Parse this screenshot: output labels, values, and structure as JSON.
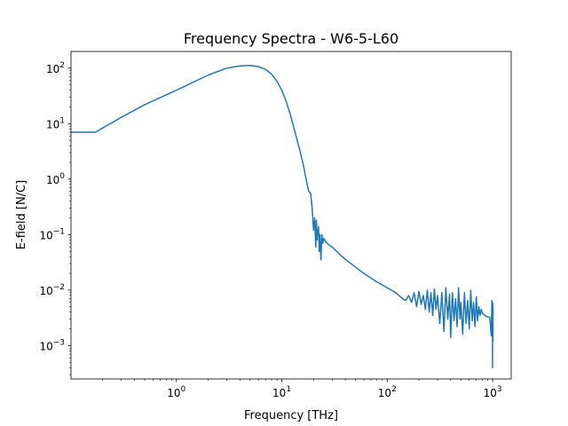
{
  "chart_data": {
    "type": "line",
    "title": "Frequency Spectra - W6-5-L60",
    "xlabel": "Frequency [THz]",
    "ylabel": "E-field [N/C]",
    "xscale": "log",
    "yscale": "log",
    "xlim": [
      0.1,
      1500
    ],
    "ylim": [
      0.00025,
      200
    ],
    "grid": false,
    "line_color": "#1f77b4",
    "x_ticks": [
      {
        "value": 1,
        "base": "10",
        "exp": "0"
      },
      {
        "value": 10,
        "base": "10",
        "exp": "1"
      },
      {
        "value": 100,
        "base": "10",
        "exp": "2"
      },
      {
        "value": 1000,
        "base": "10",
        "exp": "3"
      }
    ],
    "y_ticks": [
      {
        "value": 0.001,
        "base": "10",
        "exp": "−3"
      },
      {
        "value": 0.01,
        "base": "10",
        "exp": "−2"
      },
      {
        "value": 0.1,
        "base": "10",
        "exp": "−1"
      },
      {
        "value": 1,
        "base": "10",
        "exp": "0"
      },
      {
        "value": 10,
        "base": "10",
        "exp": "1"
      },
      {
        "value": 100,
        "base": "10",
        "exp": "2"
      }
    ],
    "series": [
      {
        "x": [
          0.1,
          0.17,
          0.3,
          0.5,
          1,
          2,
          3,
          4,
          5,
          6,
          7,
          8,
          9,
          10,
          11,
          12,
          13,
          14,
          15,
          16,
          17,
          18,
          18.8,
          19.4,
          20,
          20.5,
          21,
          21.3,
          21.6,
          21.8,
          22,
          22.3,
          22.6,
          23,
          23.5,
          24,
          24.5,
          25,
          25.5,
          26,
          27,
          28,
          30,
          35,
          40,
          50,
          60,
          80,
          100,
          120,
          140,
          150,
          160,
          170,
          180,
          190,
          200,
          210,
          220,
          230,
          240,
          250,
          260,
          270,
          280,
          290,
          300,
          315,
          330,
          345,
          360,
          375,
          390,
          400,
          415,
          430,
          445,
          460,
          475,
          490,
          500,
          520,
          540,
          560,
          580,
          600,
          620,
          640,
          660,
          680,
          700,
          720,
          740,
          760,
          780,
          800,
          830,
          860,
          900,
          940,
          970,
          985,
          992,
          996,
          998,
          1000,
          1002,
          1004,
          1006,
          1008,
          1010,
          1015
        ],
        "y": [
          7,
          7,
          13,
          22,
          40,
          75,
          100,
          110,
          112,
          107,
          95,
          78,
          58,
          40,
          25,
          15,
          8.5,
          5,
          3,
          1.8,
          1.0,
          0.6,
          0.55,
          0.3,
          0.12,
          0.2,
          0.06,
          0.18,
          0.08,
          0.12,
          0.1,
          0.14,
          0.05,
          0.1,
          0.035,
          0.1,
          0.07,
          0.085,
          0.08,
          0.075,
          0.07,
          0.065,
          0.06,
          0.045,
          0.036,
          0.026,
          0.02,
          0.014,
          0.011,
          0.009,
          0.007,
          0.0065,
          0.008,
          0.006,
          0.009,
          0.005,
          0.0095,
          0.0055,
          0.008,
          0.0045,
          0.01,
          0.004,
          0.009,
          0.0035,
          0.0105,
          0.0045,
          0.008,
          0.0025,
          0.009,
          0.0018,
          0.011,
          0.003,
          0.0085,
          0.0014,
          0.009,
          0.0028,
          0.007,
          0.0022,
          0.011,
          0.003,
          0.006,
          0.0016,
          0.009,
          0.0025,
          0.0065,
          0.002,
          0.01,
          0.0028,
          0.006,
          0.0022,
          0.0075,
          0.0028,
          0.005,
          0.0035,
          0.0045,
          0.0038,
          0.0036,
          0.0034,
          0.0033,
          0.0032,
          0.0015,
          0.0065,
          0.002,
          0.0058,
          0.0004,
          0.006,
          0.0025,
          0.0055,
          0.0012,
          0.0048,
          0.0035,
          0.0035
        ]
      }
    ]
  }
}
